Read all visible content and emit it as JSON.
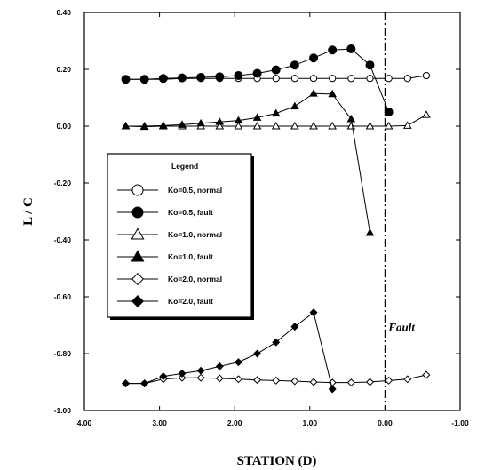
{
  "chart_data": {
    "type": "line",
    "xlabel": "STATION (D)",
    "ylabel": "L / C",
    "xlim": [
      4.0,
      -1.0
    ],
    "ylim": [
      -1.0,
      0.4
    ],
    "x_reversed": true,
    "xticks": [
      "4.00",
      "3.00",
      "2.00",
      "1.00",
      "0.00",
      "-1.00"
    ],
    "yticks": [
      "0.40",
      "0.20",
      "0.00",
      "-0.20",
      "-0.40",
      "-0.60",
      "-0.80",
      "-1.00"
    ],
    "grid": false,
    "legend_title": "Legend",
    "legend_position": "center-left",
    "annotation": {
      "text": "Fault",
      "x": 0.0,
      "line_style": "dash-dot"
    },
    "series": [
      {
        "name": "Ko=0.5, normal",
        "marker": "circle",
        "filled": false,
        "x": [
          3.45,
          3.2,
          2.95,
          2.7,
          2.45,
          2.2,
          1.95,
          1.7,
          1.45,
          1.2,
          0.95,
          0.7,
          0.45,
          0.2,
          -0.05,
          -0.3,
          -0.55
        ],
        "y": [
          0.165,
          0.165,
          0.165,
          0.168,
          0.168,
          0.168,
          0.168,
          0.168,
          0.168,
          0.168,
          0.168,
          0.168,
          0.168,
          0.168,
          0.168,
          0.168,
          0.178
        ]
      },
      {
        "name": "Ko=0.5, fault",
        "marker": "circle",
        "filled": true,
        "x": [
          3.45,
          3.2,
          2.95,
          2.7,
          2.45,
          2.2,
          1.95,
          1.7,
          1.45,
          1.2,
          0.95,
          0.7,
          0.45,
          0.2,
          -0.05
        ],
        "y": [
          0.165,
          0.165,
          0.168,
          0.17,
          0.172,
          0.174,
          0.178,
          0.186,
          0.198,
          0.215,
          0.24,
          0.268,
          0.272,
          0.215,
          0.05
        ]
      },
      {
        "name": "Ko=1.0, normal",
        "marker": "triangle",
        "filled": false,
        "x": [
          3.45,
          3.2,
          2.95,
          2.7,
          2.45,
          2.2,
          1.95,
          1.7,
          1.45,
          1.2,
          0.95,
          0.7,
          0.45,
          0.2,
          -0.05,
          -0.3,
          -0.55
        ],
        "y": [
          0.0,
          -0.002,
          0.0,
          0.0,
          0.0,
          0.0,
          0.0,
          0.0,
          0.0,
          0.0,
          0.0,
          0.0,
          0.0,
          0.0,
          0.0,
          0.002,
          0.04
        ]
      },
      {
        "name": "Ko=1.0, fault",
        "marker": "triangle",
        "filled": true,
        "x": [
          3.45,
          3.2,
          2.95,
          2.7,
          2.45,
          2.2,
          1.95,
          1.7,
          1.45,
          1.2,
          0.95,
          0.7,
          0.45,
          0.2
        ],
        "y": [
          0.0,
          0.0,
          0.002,
          0.005,
          0.01,
          0.015,
          0.02,
          0.03,
          0.045,
          0.07,
          0.115,
          0.113,
          0.025,
          -0.375
        ]
      },
      {
        "name": "Ko=2.0, normal",
        "marker": "diamond",
        "filled": false,
        "x": [
          3.45,
          3.2,
          2.95,
          2.7,
          2.45,
          2.2,
          1.95,
          1.7,
          1.45,
          1.2,
          0.95,
          0.7,
          0.45,
          0.2,
          -0.05,
          -0.3,
          -0.55
        ],
        "y": [
          -0.905,
          -0.905,
          -0.89,
          -0.885,
          -0.885,
          -0.887,
          -0.89,
          -0.893,
          -0.895,
          -0.897,
          -0.9,
          -0.902,
          -0.902,
          -0.9,
          -0.895,
          -0.89,
          -0.875
        ]
      },
      {
        "name": "Ko=2.0, fault",
        "marker": "diamond",
        "filled": true,
        "x": [
          3.45,
          3.2,
          2.95,
          2.7,
          2.45,
          2.2,
          1.95,
          1.7,
          1.45,
          1.2,
          0.95,
          0.7
        ],
        "y": [
          -0.905,
          -0.905,
          -0.88,
          -0.87,
          -0.86,
          -0.845,
          -0.83,
          -0.8,
          -0.76,
          -0.705,
          -0.655,
          -0.925
        ]
      }
    ]
  }
}
